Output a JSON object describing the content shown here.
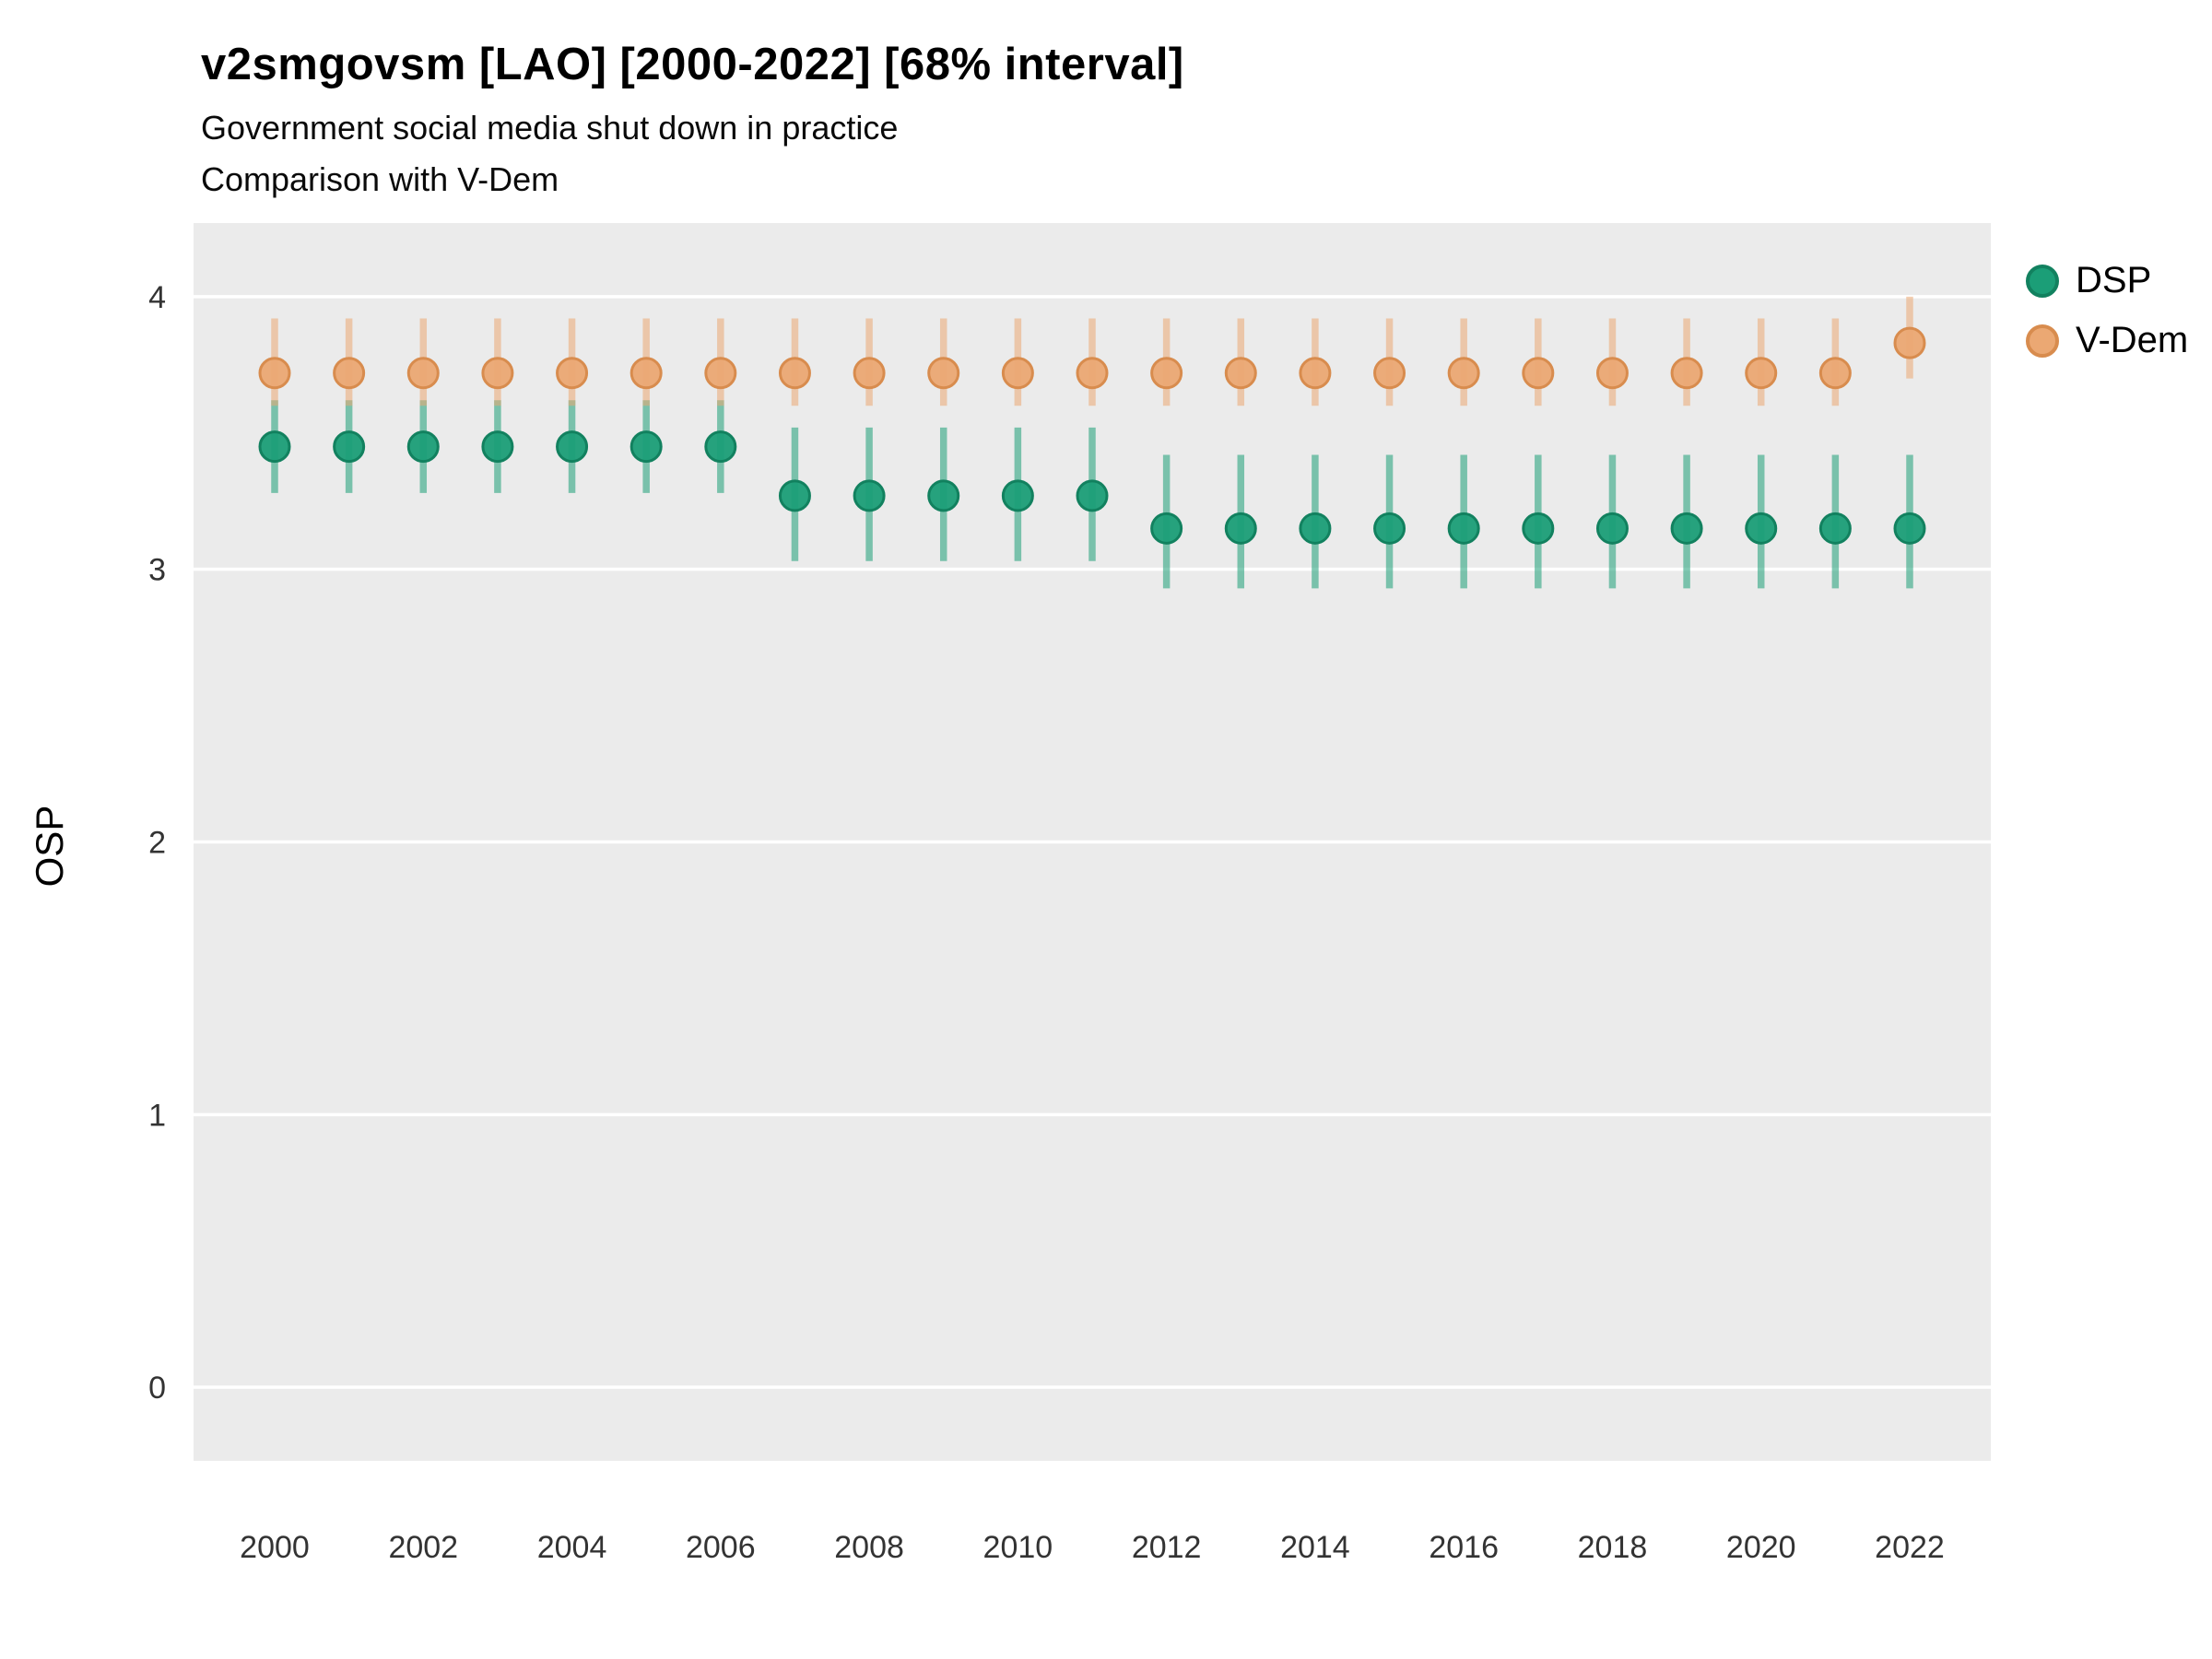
{
  "chart_data": {
    "type": "scatter",
    "subtype": "pointrange-interval",
    "title": "v2smgovsm [LAO] [2000-2022] [68% interval]",
    "subtitle": "Government social media shut down in practice",
    "subtitle2": "Comparison with V-Dem",
    "xlabel": "",
    "ylabel": "OSP",
    "x": [
      2000,
      2001,
      2002,
      2003,
      2004,
      2005,
      2006,
      2007,
      2008,
      2009,
      2010,
      2011,
      2012,
      2013,
      2014,
      2015,
      2016,
      2017,
      2018,
      2019,
      2020,
      2021,
      2022
    ],
    "series": [
      {
        "name": "DSP",
        "color": "#1B9E77",
        "point_stroke": "#12815F",
        "estimate": [
          3.45,
          3.45,
          3.45,
          3.45,
          3.45,
          3.45,
          3.45,
          3.27,
          3.27,
          3.27,
          3.27,
          3.27,
          3.15,
          3.15,
          3.15,
          3.15,
          3.15,
          3.15,
          3.15,
          3.15,
          3.15,
          3.15,
          3.15
        ],
        "lower": [
          3.28,
          3.28,
          3.28,
          3.28,
          3.28,
          3.28,
          3.28,
          3.03,
          3.03,
          3.03,
          3.03,
          3.03,
          2.93,
          2.93,
          2.93,
          2.93,
          2.93,
          2.93,
          2.93,
          2.93,
          2.93,
          2.93,
          2.93
        ],
        "upper": [
          3.62,
          3.62,
          3.62,
          3.62,
          3.62,
          3.62,
          3.62,
          3.52,
          3.52,
          3.52,
          3.52,
          3.52,
          3.42,
          3.42,
          3.42,
          3.42,
          3.42,
          3.42,
          3.42,
          3.42,
          3.42,
          3.42,
          3.42
        ]
      },
      {
        "name": "V-Dem",
        "color": "#EBA873",
        "point_stroke": "#D88C4E",
        "estimate": [
          3.72,
          3.72,
          3.72,
          3.72,
          3.72,
          3.72,
          3.72,
          3.72,
          3.72,
          3.72,
          3.72,
          3.72,
          3.72,
          3.72,
          3.72,
          3.72,
          3.72,
          3.72,
          3.72,
          3.72,
          3.72,
          3.72,
          3.83
        ],
        "lower": [
          3.6,
          3.6,
          3.6,
          3.6,
          3.6,
          3.6,
          3.6,
          3.6,
          3.6,
          3.6,
          3.6,
          3.6,
          3.6,
          3.6,
          3.6,
          3.6,
          3.6,
          3.6,
          3.6,
          3.6,
          3.6,
          3.6,
          3.7
        ],
        "upper": [
          3.92,
          3.92,
          3.92,
          3.92,
          3.92,
          3.92,
          3.92,
          3.92,
          3.92,
          3.92,
          3.92,
          3.92,
          3.92,
          3.92,
          3.92,
          3.92,
          3.92,
          3.92,
          3.92,
          3.92,
          3.92,
          3.92,
          4.0
        ]
      }
    ],
    "x_ticks": [
      2000,
      2002,
      2004,
      2006,
      2008,
      2010,
      2012,
      2014,
      2016,
      2018,
      2020,
      2022
    ],
    "y_ticks": [
      0,
      1,
      2,
      3,
      4
    ],
    "ylim": [
      -0.27,
      4.27
    ],
    "grid": true,
    "panel_bg": "#EBEBEB",
    "grid_color": "#FFFFFF",
    "tick_label_color": "#333333",
    "legend": {
      "position": "right",
      "entries": [
        {
          "label": "DSP",
          "color": "#1B9E77",
          "stroke": "#12815F"
        },
        {
          "label": "V-Dem",
          "color": "#EBA873",
          "stroke": "#D88C4E"
        }
      ]
    }
  }
}
